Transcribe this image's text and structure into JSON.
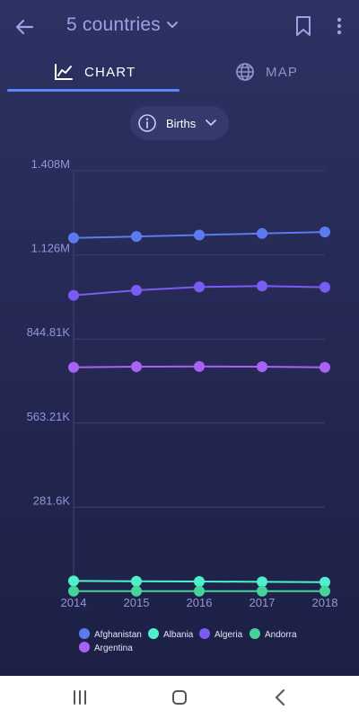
{
  "header": {
    "title": "5 countries",
    "back_icon": "arrow-left-icon",
    "bookmark_icon": "bookmark-icon",
    "more_icon": "more-vertical-icon"
  },
  "tabs": [
    {
      "label": "CHART",
      "icon": "chart-line-icon",
      "active": true
    },
    {
      "label": "MAP",
      "icon": "globe-icon",
      "active": false
    }
  ],
  "metric": {
    "label": "Births",
    "icon": "info-icon"
  },
  "colors": {
    "accent": "#5b86ff",
    "Afghanistan": "#5b7bf0",
    "Albania": "#4ff0cc",
    "Algeria": "#7a5cf5",
    "Andorra": "#45d39b",
    "Argentina": "#a862f5"
  },
  "chart_data": {
    "type": "line",
    "x": [
      2014,
      2015,
      2016,
      2017,
      2018
    ],
    "ylim": [
      0,
      1408000
    ],
    "y_ticks": [
      {
        "value": 281600,
        "label": "281.6K"
      },
      {
        "value": 563210,
        "label": "563.21K"
      },
      {
        "value": 844810,
        "label": "844.81K"
      },
      {
        "value": 1126000,
        "label": "1.126M"
      },
      {
        "value": 1408000,
        "label": "1.408M"
      }
    ],
    "series": [
      {
        "name": "Afghanistan",
        "values": [
          1183000,
          1188000,
          1193000,
          1198000,
          1203000
        ]
      },
      {
        "name": "Albania",
        "values": [
          35000,
          34000,
          33000,
          32000,
          31000
        ]
      },
      {
        "name": "Algeria",
        "values": [
          991000,
          1008000,
          1019000,
          1022000,
          1018000
        ]
      },
      {
        "name": "Andorra",
        "values": [
          700,
          700,
          700,
          700,
          700
        ]
      },
      {
        "name": "Argentina",
        "values": [
          750000,
          752000,
          753000,
          752000,
          750000
        ]
      }
    ],
    "legend_position": "bottom",
    "grid": true
  },
  "navbar": {
    "recents_icon": "recents-icon",
    "home_icon": "home-icon",
    "back_icon": "nav-back-icon"
  }
}
